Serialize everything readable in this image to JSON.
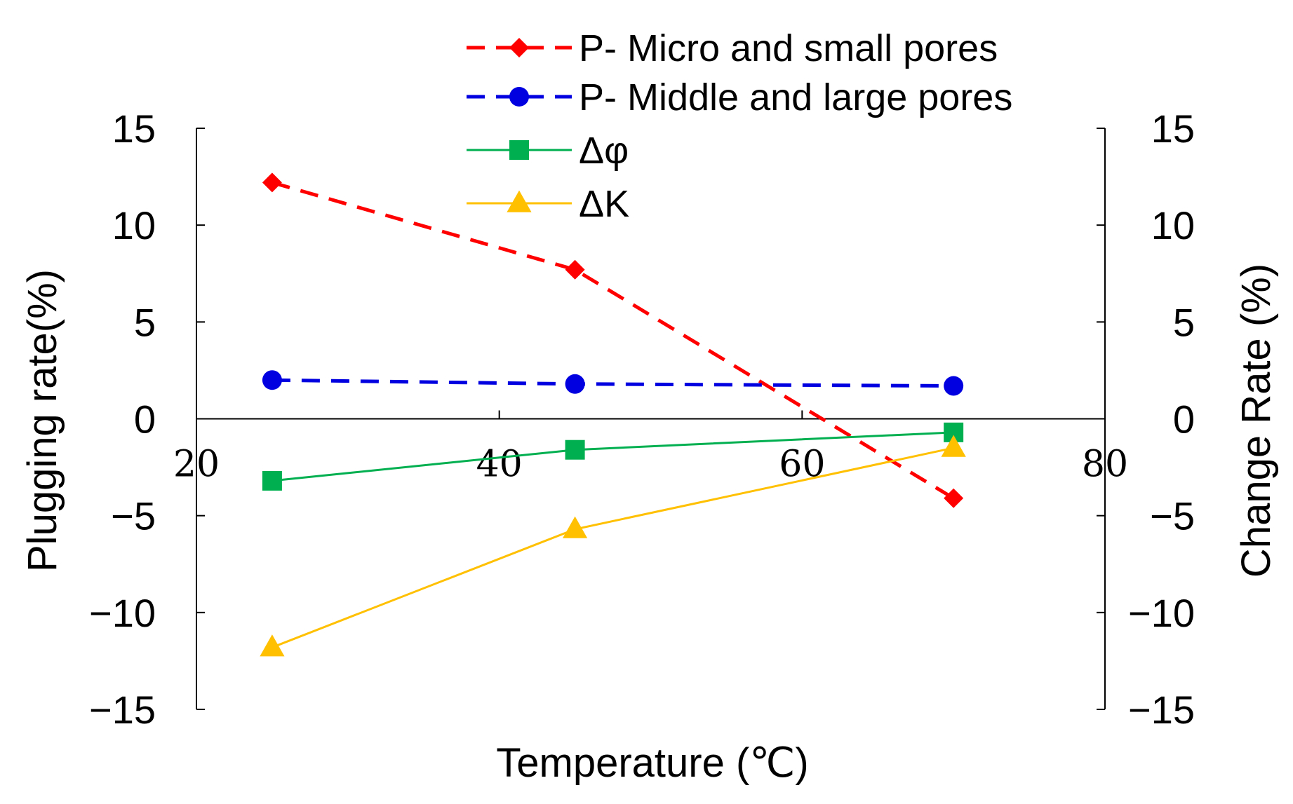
{
  "chart_data": {
    "type": "line",
    "xlabel": "Temperature (℃)",
    "ylabel_left": "Plugging rate(%)",
    "ylabel_right": "Change Rate (%)",
    "xlim": [
      20,
      80
    ],
    "ylim": [
      -15,
      15
    ],
    "xticks": [
      "20",
      "40",
      "60",
      "80"
    ],
    "yticks": [
      "15",
      "10",
      "5",
      "0",
      "−5",
      "−10",
      "−15"
    ],
    "grid": false,
    "legend_position": "top-right",
    "series": [
      {
        "name": "P- Micro and small pores",
        "color": "#ff0000",
        "line": "dashed",
        "marker": "diamond",
        "x": [
          25,
          45,
          70
        ],
        "y": [
          12.2,
          7.7,
          -4.1
        ]
      },
      {
        "name": "P- Middle and large pores",
        "color": "#0000e0",
        "line": "dashed",
        "marker": "circle",
        "x": [
          25,
          45,
          70
        ],
        "y": [
          2.0,
          1.8,
          1.7
        ]
      },
      {
        "name": "Δφ",
        "color": "#00b050",
        "line": "solid",
        "marker": "square",
        "x": [
          25,
          45,
          70
        ],
        "y": [
          -3.2,
          -1.6,
          -0.7
        ]
      },
      {
        "name": "ΔK",
        "color": "#ffc000",
        "line": "solid",
        "marker": "triangle",
        "x": [
          25,
          45,
          70
        ],
        "y": [
          -11.8,
          -5.7,
          -1.5
        ]
      }
    ]
  }
}
